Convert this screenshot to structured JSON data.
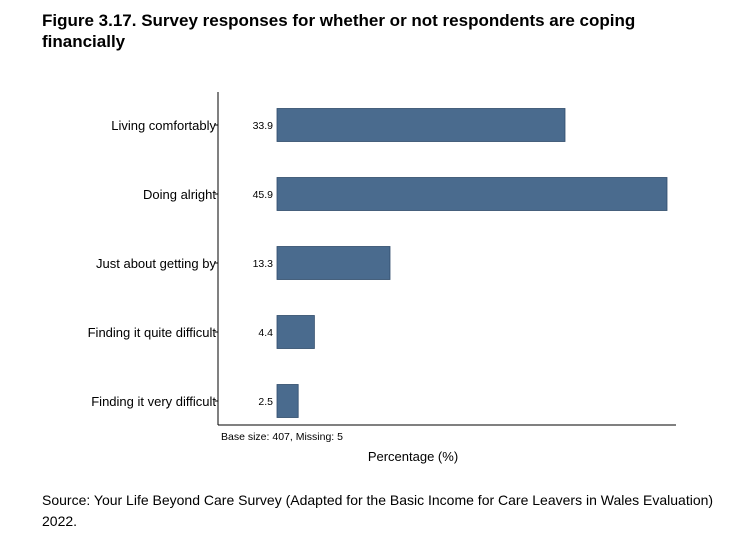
{
  "title": "Figure 3.17. Survey responses for whether or not respondents are coping financially",
  "source": "Source: Your Life Beyond Care Survey (Adapted for the Basic Income for Care Leavers in Wales Evaluation) 2022.",
  "chart_data": {
    "type": "bar",
    "orientation": "horizontal",
    "title": "Figure 3.17. Survey responses for whether or not respondents are coping financially",
    "categories": [
      "Living comfortably",
      "Doing alright",
      "Just about getting by",
      "Finding it quite difficult",
      "Finding it very difficult"
    ],
    "values": [
      33.9,
      45.9,
      13.3,
      4.4,
      2.5
    ],
    "value_labels": [
      "33.9",
      "45.9",
      "13.3",
      "4.4",
      "2.5"
    ],
    "xlabel": "Percentage (%)",
    "ylabel": "",
    "xlim": [
      0,
      47
    ],
    "note": "Base size: 407, Missing: 5",
    "bar_color": "#4a6b8e",
    "grid": false
  }
}
